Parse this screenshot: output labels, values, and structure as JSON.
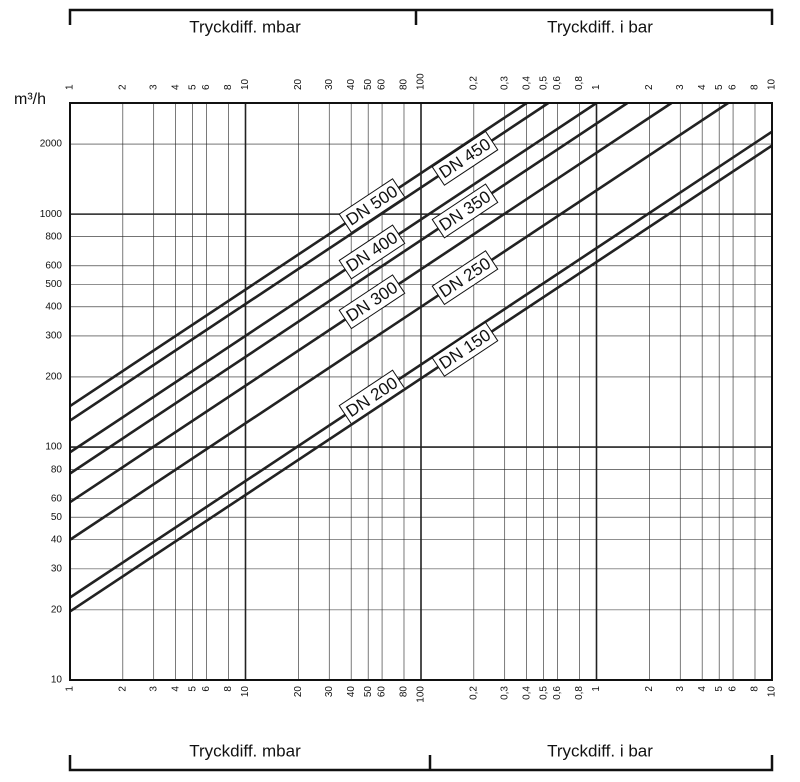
{
  "chart_data": {
    "type": "line",
    "log_x": true,
    "log_y": true,
    "grid": true,
    "y_label": "m³/h",
    "header_left": "Tryckdiff. mbar",
    "header_right": "Tryckdiff. i bar",
    "footer_left": "Tryckdiff. mbar",
    "footer_right": "Tryckdiff. i bar",
    "xlim": [
      1,
      10000
    ],
    "ylim": [
      10,
      3000
    ],
    "xticks": [
      1,
      2,
      3,
      4,
      5,
      6,
      8,
      10,
      20,
      30,
      40,
      50,
      60,
      80,
      100,
      {
        "value": 200,
        "label": "0,2"
      },
      {
        "value": 300,
        "label": "0,3"
      },
      {
        "value": 400,
        "label": "0,4"
      },
      {
        "value": 500,
        "label": "0,5"
      },
      {
        "value": 600,
        "label": "0,6"
      },
      {
        "value": 800,
        "label": "0,8"
      },
      {
        "value": 1000,
        "label": "1"
      },
      {
        "value": 2000,
        "label": "2"
      },
      {
        "value": 3000,
        "label": "3"
      },
      {
        "value": 4000,
        "label": "4"
      },
      {
        "value": 5000,
        "label": "5"
      },
      {
        "value": 6000,
        "label": "6"
      },
      {
        "value": 8000,
        "label": "8"
      },
      {
        "value": 10000,
        "label": "10"
      }
    ],
    "yticks": [
      10,
      20,
      30,
      40,
      50,
      60,
      80,
      100,
      200,
      300,
      400,
      500,
      600,
      800,
      1000,
      2000
    ],
    "series": [
      {
        "name": "DN 500",
        "color": "#222222",
        "x": [
          1,
          400
        ],
        "values": [
          150,
          3000
        ]
      },
      {
        "name": "DN 450",
        "color": "#222222",
        "x": [
          1,
          532
        ],
        "values": [
          130,
          3000
        ]
      },
      {
        "name": "DN 400",
        "color": "#222222",
        "x": [
          1,
          1000
        ],
        "values": [
          95,
          3000
        ]
      },
      {
        "name": "DN 350",
        "color": "#222222",
        "x": [
          1,
          1500
        ],
        "values": [
          77,
          3000
        ]
      },
      {
        "name": "DN 300",
        "color": "#222222",
        "x": [
          1,
          2675
        ],
        "values": [
          58,
          3000
        ]
      },
      {
        "name": "DN 250",
        "color": "#222222",
        "x": [
          1,
          5625
        ],
        "values": [
          40,
          3000
        ]
      },
      {
        "name": "DN 200",
        "color": "#222222",
        "x": [
          1,
          10000
        ],
        "values": [
          22.6,
          2260
        ]
      },
      {
        "name": "DN 150",
        "color": "#222222",
        "x": [
          1,
          10000
        ],
        "values": [
          19.7,
          1970
        ]
      }
    ]
  }
}
